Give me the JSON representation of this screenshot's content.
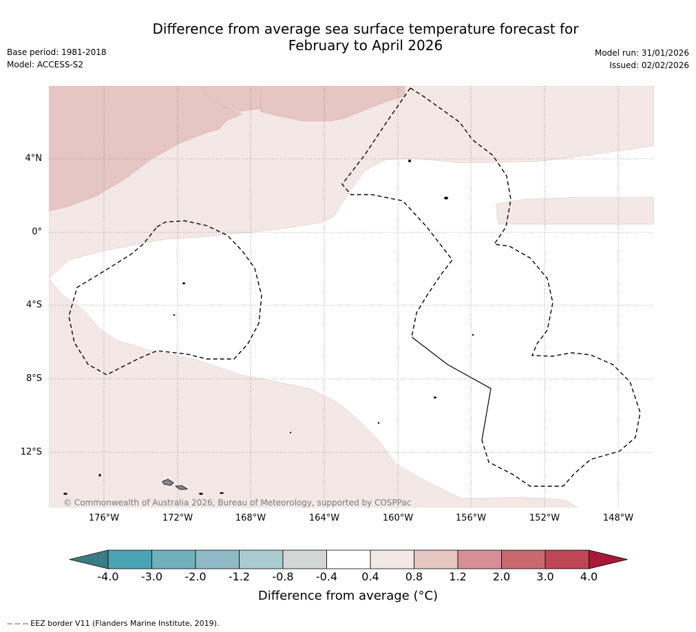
{
  "title": {
    "line1": "Difference from average sea surface temperature forecast for",
    "line2": "February to April 2026"
  },
  "meta_left": {
    "base_period": "Base period: 1981-2018",
    "model": "Model: ACCESS-S2"
  },
  "meta_right": {
    "model_run": "Model run: 31/01/2026",
    "issued": "Issued: 02/02/2026"
  },
  "map": {
    "lat_labels": [
      "4°N",
      "0°",
      "4°S",
      "8°S",
      "12°S"
    ],
    "lon_labels": [
      "176°W",
      "172°W",
      "168°W",
      "164°W",
      "160°W",
      "156°W",
      "152°W",
      "148°W"
    ],
    "copyright": "© Commonwealth of Australia 2026, Bureau of Meteorology, supported by COSPPac"
  },
  "colorbar": {
    "labels": [
      "-4.0",
      "-3.0",
      "-2.0",
      "-1.2",
      "-0.8",
      "-0.4",
      "0.4",
      "0.8",
      "1.2",
      "2.0",
      "3.0",
      "4.0"
    ],
    "title": "Difference from average (°C)",
    "extend_min_color": "#3b7c86",
    "extend_max_color": "#a8193a",
    "colors": [
      "#4aa3b1",
      "#6fb0bd",
      "#8fbac5",
      "#aacbd0",
      "#d2d6d5",
      "#ffffff",
      "#f4e8e7",
      "#e6c6c2",
      "#d68f96",
      "#c9686f",
      "#bf4654"
    ]
  },
  "legend": {
    "eez_note": "--  --  -- EEZ border V11 (Flanders Marine Institute, 2019)."
  }
}
